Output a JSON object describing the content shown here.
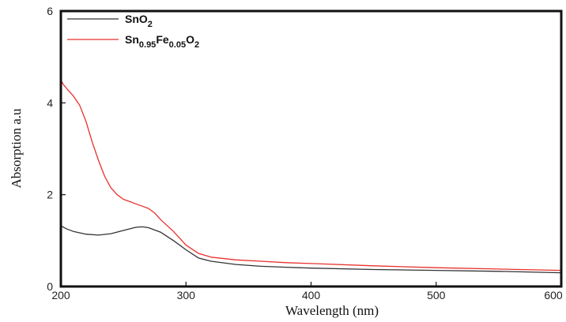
{
  "chart_data": {
    "type": "line",
    "xlabel": "Wavelength (nm)",
    "ylabel": "Absorption a.u",
    "xlim": [
      200,
      600
    ],
    "ylim": [
      0,
      6
    ],
    "x_ticks": [
      "200",
      "300",
      "400",
      "500",
      "600"
    ],
    "y_ticks": [
      "0",
      "2",
      "4",
      "6"
    ],
    "grid": false,
    "legend_position": "top-left",
    "series": [
      {
        "name": "SnO2",
        "legend": {
          "base": "SnO",
          "subscripts": [
            {
              "text": "2",
              "after": ""
            }
          ]
        },
        "color": "#333333",
        "x": [
          200,
          205,
          210,
          220,
          230,
          240,
          250,
          260,
          265,
          270,
          280,
          290,
          300,
          310,
          320,
          340,
          360,
          380,
          400,
          450,
          500,
          550,
          600
        ],
        "y": [
          1.32,
          1.25,
          1.2,
          1.14,
          1.12,
          1.15,
          1.22,
          1.29,
          1.3,
          1.28,
          1.18,
          1.0,
          0.8,
          0.62,
          0.55,
          0.48,
          0.44,
          0.42,
          0.4,
          0.37,
          0.35,
          0.33,
          0.3
        ]
      },
      {
        "name": "Sn0.95Fe0.05O2",
        "legend": {
          "parts": [
            {
              "text": "Sn",
              "sub": false
            },
            {
              "text": "0.95",
              "sub": true
            },
            {
              "text": "Fe",
              "sub": false
            },
            {
              "text": "0.05",
              "sub": true
            },
            {
              "text": "O",
              "sub": false
            },
            {
              "text": "2",
              "sub": true
            }
          ]
        },
        "color": "#e8302c",
        "x": [
          200,
          202,
          205,
          210,
          215,
          220,
          225,
          230,
          235,
          240,
          245,
          250,
          255,
          260,
          265,
          270,
          275,
          280,
          290,
          300,
          310,
          320,
          340,
          360,
          380,
          400,
          450,
          500,
          550,
          600
        ],
        "y": [
          4.5,
          4.4,
          4.3,
          4.15,
          3.95,
          3.6,
          3.15,
          2.75,
          2.4,
          2.15,
          2.0,
          1.9,
          1.85,
          1.8,
          1.75,
          1.7,
          1.6,
          1.45,
          1.2,
          0.9,
          0.72,
          0.64,
          0.58,
          0.55,
          0.52,
          0.5,
          0.45,
          0.41,
          0.38,
          0.35
        ]
      }
    ]
  }
}
